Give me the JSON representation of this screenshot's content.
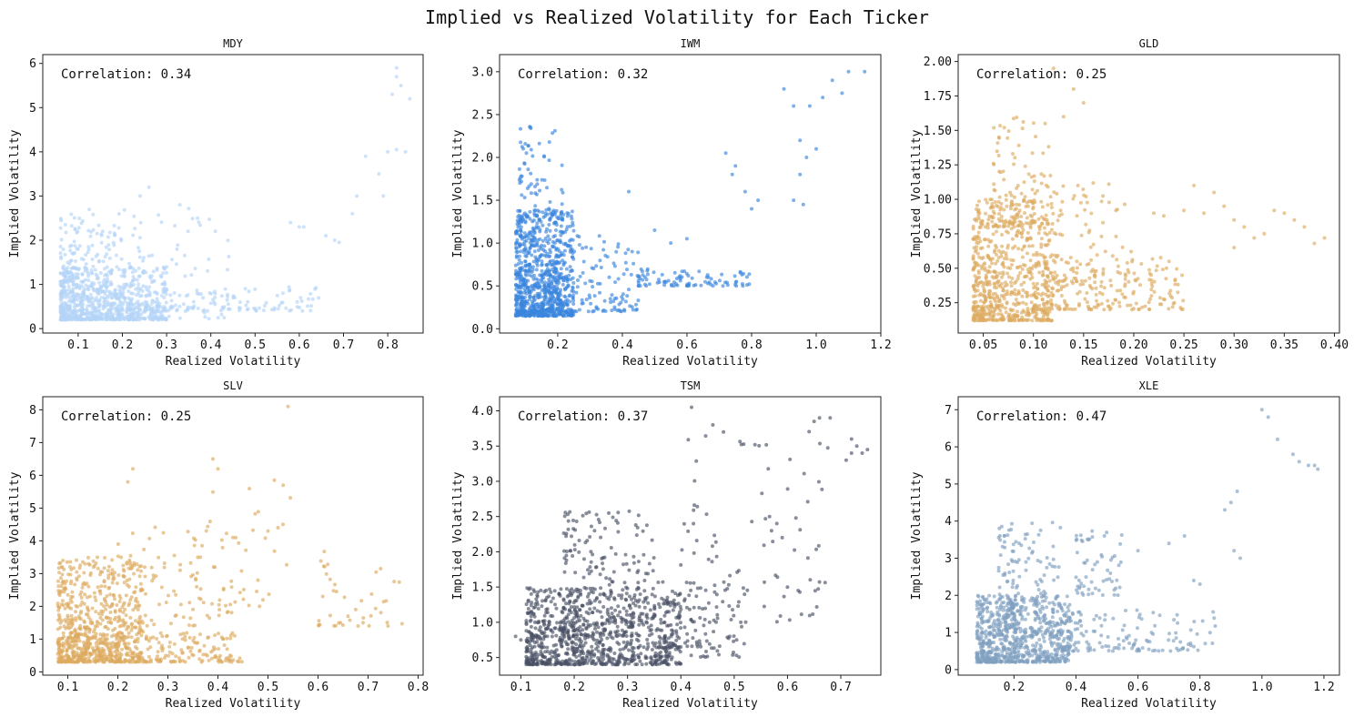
{
  "figure_title": "Implied vs Realized Volatility for Each Ticker",
  "chart_data": [
    {
      "type": "scatter",
      "title": "MDY",
      "xlabel": "Realized Volatility",
      "ylabel": "Implied Volatility",
      "annotation": "Correlation: 0.34",
      "color": "#b3d4f7",
      "xlim": [
        0.02,
        0.88
      ],
      "ylim": [
        -0.1,
        6.2
      ],
      "xticks": [
        {
          "v": 0.1,
          "label": "0.1"
        },
        {
          "v": 0.2,
          "label": "0.2"
        },
        {
          "v": 0.3,
          "label": "0.3"
        },
        {
          "v": 0.4,
          "label": "0.4"
        },
        {
          "v": 0.5,
          "label": "0.5"
        },
        {
          "v": 0.6,
          "label": "0.6"
        },
        {
          "v": 0.7,
          "label": "0.7"
        },
        {
          "v": 0.8,
          "label": "0.8"
        }
      ],
      "yticks": [
        {
          "v": 0,
          "label": "0"
        },
        {
          "v": 1,
          "label": "1"
        },
        {
          "v": 2,
          "label": "2"
        },
        {
          "v": 3,
          "label": "3"
        },
        {
          "v": 4,
          "label": "4"
        },
        {
          "v": 5,
          "label": "5"
        },
        {
          "v": 6,
          "label": "6"
        }
      ],
      "clusters": [
        {
          "cx": [
            0.06,
            0.3
          ],
          "cy": [
            0.2,
            1.4
          ],
          "n": 650
        },
        {
          "cx": [
            0.06,
            0.25
          ],
          "cy": [
            0.2,
            2.6
          ],
          "n": 250
        },
        {
          "cx": [
            0.1,
            0.45
          ],
          "cy": [
            0.2,
            2.8
          ],
          "n": 100
        },
        {
          "cx": [
            0.25,
            0.65
          ],
          "cy": [
            0.4,
            0.95
          ],
          "n": 130
        }
      ],
      "points": [
        [
          0.82,
          5.9
        ],
        [
          0.83,
          5.5
        ],
        [
          0.81,
          5.3
        ],
        [
          0.85,
          5.2
        ],
        [
          0.82,
          5.7
        ],
        [
          0.8,
          4.0
        ],
        [
          0.82,
          4.05
        ],
        [
          0.84,
          4.0
        ],
        [
          0.78,
          3.5
        ],
        [
          0.79,
          3.0
        ],
        [
          0.75,
          3.9
        ],
        [
          0.73,
          3.0
        ],
        [
          0.72,
          2.6
        ],
        [
          0.68,
          2.0
        ],
        [
          0.66,
          2.1
        ],
        [
          0.69,
          1.95
        ],
        [
          0.6,
          2.3
        ],
        [
          0.58,
          2.4
        ],
        [
          0.61,
          2.3
        ],
        [
          0.26,
          3.2
        ],
        [
          0.24,
          3.0
        ],
        [
          0.33,
          2.8
        ],
        [
          0.37,
          2.5
        ],
        [
          0.41,
          2.2
        ]
      ]
    },
    {
      "type": "scatter",
      "title": "IWM",
      "xlabel": "Realized Volatility",
      "ylabel": "Implied Volatility",
      "annotation": "Correlation: 0.32",
      "color": "#3a86dd",
      "xlim": [
        0.02,
        1.2
      ],
      "ylim": [
        -0.05,
        3.2
      ],
      "xticks": [
        {
          "v": 0.2,
          "label": "0.2"
        },
        {
          "v": 0.4,
          "label": "0.4"
        },
        {
          "v": 0.6,
          "label": "0.6"
        },
        {
          "v": 0.8,
          "label": "0.8"
        },
        {
          "v": 1.0,
          "label": "1.0"
        },
        {
          "v": 1.2,
          "label": "1.2"
        }
      ],
      "yticks": [
        {
          "v": 0,
          "label": "0.0"
        },
        {
          "v": 0.5,
          "label": "0.5"
        },
        {
          "v": 1.0,
          "label": "1.0"
        },
        {
          "v": 1.5,
          "label": "1.5"
        },
        {
          "v": 2.0,
          "label": "2.0"
        },
        {
          "v": 2.5,
          "label": "2.5"
        },
        {
          "v": 3.0,
          "label": "3.0"
        }
      ],
      "clusters": [
        {
          "cx": [
            0.07,
            0.25
          ],
          "cy": [
            0.15,
            1.4
          ],
          "n": 700
        },
        {
          "cx": [
            0.08,
            0.22
          ],
          "cy": [
            0.2,
            2.4
          ],
          "n": 200
        },
        {
          "cx": [
            0.15,
            0.45
          ],
          "cy": [
            0.2,
            1.1
          ],
          "n": 180
        },
        {
          "cx": [
            0.45,
            0.8
          ],
          "cy": [
            0.5,
            0.7
          ],
          "n": 90
        }
      ],
      "points": [
        [
          1.1,
          3.0
        ],
        [
          1.05,
          2.9
        ],
        [
          1.15,
          3.0
        ],
        [
          1.08,
          2.75
        ],
        [
          1.02,
          2.7
        ],
        [
          0.98,
          2.6
        ],
        [
          0.93,
          2.6
        ],
        [
          0.9,
          2.8
        ],
        [
          0.95,
          2.2
        ],
        [
          0.97,
          2.0
        ],
        [
          1.0,
          2.1
        ],
        [
          0.95,
          1.8
        ],
        [
          0.93,
          1.5
        ],
        [
          0.96,
          1.45
        ],
        [
          0.8,
          1.4
        ],
        [
          0.82,
          1.5
        ],
        [
          0.75,
          1.9
        ],
        [
          0.78,
          1.6
        ],
        [
          0.72,
          2.05
        ],
        [
          0.74,
          1.8
        ],
        [
          0.5,
          1.15
        ],
        [
          0.55,
          1.0
        ],
        [
          0.6,
          1.05
        ],
        [
          0.42,
          1.6
        ]
      ]
    },
    {
      "type": "scatter",
      "title": "GLD",
      "xlabel": "Realized Volatility",
      "ylabel": "Implied Volatility",
      "annotation": "Correlation: 0.25",
      "color": "#ddaa60",
      "xlim": [
        0.025,
        0.405
      ],
      "ylim": [
        0.03,
        2.05
      ],
      "xticks": [
        {
          "v": 0.05,
          "label": "0.05"
        },
        {
          "v": 0.1,
          "label": "0.10"
        },
        {
          "v": 0.15,
          "label": "0.15"
        },
        {
          "v": 0.2,
          "label": "0.20"
        },
        {
          "v": 0.25,
          "label": "0.25"
        },
        {
          "v": 0.3,
          "label": "0.30"
        },
        {
          "v": 0.35,
          "label": "0.35"
        },
        {
          "v": 0.4,
          "label": "0.40"
        }
      ],
      "yticks": [
        {
          "v": 0.25,
          "label": "0.25"
        },
        {
          "v": 0.5,
          "label": "0.50"
        },
        {
          "v": 0.75,
          "label": "0.75"
        },
        {
          "v": 1.0,
          "label": "1.00"
        },
        {
          "v": 1.25,
          "label": "1.25"
        },
        {
          "v": 1.5,
          "label": "1.50"
        },
        {
          "v": 1.75,
          "label": "1.75"
        },
        {
          "v": 2.0,
          "label": "2.00"
        }
      ],
      "clusters": [
        {
          "cx": [
            0.04,
            0.12
          ],
          "cy": [
            0.12,
            1.0
          ],
          "n": 650
        },
        {
          "cx": [
            0.06,
            0.12
          ],
          "cy": [
            0.8,
            1.6
          ],
          "n": 120
        },
        {
          "cx": [
            0.1,
            0.25
          ],
          "cy": [
            0.2,
            0.6
          ],
          "n": 220
        },
        {
          "cx": [
            0.12,
            0.2
          ],
          "cy": [
            0.4,
            1.2
          ],
          "n": 80
        }
      ],
      "points": [
        [
          0.39,
          0.72
        ],
        [
          0.38,
          0.68
        ],
        [
          0.37,
          0.8
        ],
        [
          0.36,
          0.85
        ],
        [
          0.35,
          0.9
        ],
        [
          0.34,
          0.92
        ],
        [
          0.32,
          0.72
        ],
        [
          0.33,
          0.75
        ],
        [
          0.31,
          0.8
        ],
        [
          0.3,
          0.85
        ],
        [
          0.29,
          0.95
        ],
        [
          0.28,
          1.05
        ],
        [
          0.27,
          0.9
        ],
        [
          0.25,
          0.92
        ],
        [
          0.23,
          0.88
        ],
        [
          0.22,
          0.9
        ],
        [
          0.26,
          1.1
        ],
        [
          0.3,
          0.65
        ],
        [
          0.14,
          1.8
        ],
        [
          0.12,
          1.95
        ],
        [
          0.15,
          1.7
        ],
        [
          0.13,
          1.6
        ]
      ]
    },
    {
      "type": "scatter",
      "title": "SLV",
      "xlabel": "Realized Volatility",
      "ylabel": "Implied Volatility",
      "annotation": "Correlation: 0.25",
      "color": "#ddaa60",
      "xlim": [
        0.05,
        0.81
      ],
      "ylim": [
        -0.1,
        8.4
      ],
      "xticks": [
        {
          "v": 0.1,
          "label": "0.1"
        },
        {
          "v": 0.2,
          "label": "0.2"
        },
        {
          "v": 0.3,
          "label": "0.3"
        },
        {
          "v": 0.4,
          "label": "0.4"
        },
        {
          "v": 0.5,
          "label": "0.5"
        },
        {
          "v": 0.6,
          "label": "0.6"
        },
        {
          "v": 0.7,
          "label": "0.7"
        },
        {
          "v": 0.8,
          "label": "0.8"
        }
      ],
      "yticks": [
        {
          "v": 0,
          "label": "0"
        },
        {
          "v": 1,
          "label": "1"
        },
        {
          "v": 2,
          "label": "2"
        },
        {
          "v": 3,
          "label": "3"
        },
        {
          "v": 4,
          "label": "4"
        },
        {
          "v": 5,
          "label": "5"
        },
        {
          "v": 6,
          "label": "6"
        },
        {
          "v": 7,
          "label": "7"
        },
        {
          "v": 8,
          "label": "8"
        }
      ],
      "clusters": [
        {
          "cx": [
            0.08,
            0.25
          ],
          "cy": [
            0.3,
            3.5
          ],
          "n": 650
        },
        {
          "cx": [
            0.1,
            0.45
          ],
          "cy": [
            0.3,
            1.2
          ],
          "n": 250
        },
        {
          "cx": [
            0.2,
            0.45
          ],
          "cy": [
            1.0,
            4.5
          ],
          "n": 100
        },
        {
          "cx": [
            0.35,
            0.55
          ],
          "cy": [
            2.0,
            6.0
          ],
          "n": 40
        },
        {
          "cx": [
            0.6,
            0.77
          ],
          "cy": [
            1.4,
            3.7
          ],
          "n": 40
        }
      ],
      "points": [
        [
          0.54,
          8.1
        ],
        [
          0.52,
          4.4
        ],
        [
          0.5,
          4.3
        ],
        [
          0.53,
          4.5
        ],
        [
          0.48,
          2.8
        ],
        [
          0.49,
          2.2
        ],
        [
          0.23,
          6.2
        ],
        [
          0.22,
          5.8
        ],
        [
          0.39,
          6.5
        ],
        [
          0.4,
          6.2
        ],
        [
          0.68,
          1.4
        ],
        [
          0.69,
          1.5
        ],
        [
          0.66,
          1.7
        ]
      ]
    },
    {
      "type": "scatter",
      "title": "TSM",
      "xlabel": "Realized Volatility",
      "ylabel": "Implied Volatility",
      "annotation": "Correlation: 0.37",
      "color": "#4a5165",
      "xlim": [
        0.06,
        0.775
      ],
      "ylim": [
        0.25,
        4.2
      ],
      "xticks": [
        {
          "v": 0.1,
          "label": "0.1"
        },
        {
          "v": 0.2,
          "label": "0.2"
        },
        {
          "v": 0.3,
          "label": "0.3"
        },
        {
          "v": 0.4,
          "label": "0.4"
        },
        {
          "v": 0.5,
          "label": "0.5"
        },
        {
          "v": 0.6,
          "label": "0.6"
        },
        {
          "v": 0.7,
          "label": "0.7"
        }
      ],
      "yticks": [
        {
          "v": 0.5,
          "label": "0.5"
        },
        {
          "v": 1.0,
          "label": "1.0"
        },
        {
          "v": 1.5,
          "label": "1.5"
        },
        {
          "v": 2.0,
          "label": "2.0"
        },
        {
          "v": 2.5,
          "label": "2.5"
        },
        {
          "v": 3.0,
          "label": "3.0"
        },
        {
          "v": 3.5,
          "label": "3.5"
        },
        {
          "v": 4.0,
          "label": "4.0"
        }
      ],
      "clusters": [
        {
          "cx": [
            0.11,
            0.4
          ],
          "cy": [
            0.4,
            1.5
          ],
          "n": 800
        },
        {
          "cx": [
            0.18,
            0.35
          ],
          "cy": [
            0.8,
            2.6
          ],
          "n": 250
        },
        {
          "cx": [
            0.35,
            0.52
          ],
          "cy": [
            0.5,
            1.6
          ],
          "n": 130
        },
        {
          "cx": [
            0.4,
            0.68
          ],
          "cy": [
            1.0,
            3.8
          ],
          "n": 90
        }
      ],
      "points": [
        [
          0.72,
          3.4
        ],
        [
          0.73,
          3.5
        ],
        [
          0.71,
          3.3
        ],
        [
          0.74,
          3.4
        ],
        [
          0.72,
          3.6
        ],
        [
          0.75,
          3.45
        ],
        [
          0.66,
          3.9
        ],
        [
          0.68,
          3.9
        ],
        [
          0.65,
          3.85
        ],
        [
          0.42,
          4.05
        ],
        [
          0.48,
          3.7
        ],
        [
          0.46,
          3.8
        ],
        [
          0.58,
          2.4
        ],
        [
          0.57,
          2.3
        ],
        [
          0.59,
          2.2
        ],
        [
          0.6,
          1.5
        ],
        [
          0.62,
          1.45
        ],
        [
          0.09,
          0.8
        ],
        [
          0.1,
          0.75
        ]
      ]
    },
    {
      "type": "scatter",
      "title": "XLE",
      "xlabel": "Realized Volatility",
      "ylabel": "Implied Volatility",
      "annotation": "Correlation: 0.47",
      "color": "#80a0c0",
      "xlim": [
        0.02,
        1.25
      ],
      "ylim": [
        -0.15,
        7.35
      ],
      "xticks": [
        {
          "v": 0.2,
          "label": "0.2"
        },
        {
          "v": 0.4,
          "label": "0.4"
        },
        {
          "v": 0.6,
          "label": "0.6"
        },
        {
          "v": 0.8,
          "label": "0.8"
        },
        {
          "v": 1.0,
          "label": "1.0"
        },
        {
          "v": 1.2,
          "label": "1.2"
        }
      ],
      "yticks": [
        {
          "v": 0,
          "label": "0"
        },
        {
          "v": 1,
          "label": "1"
        },
        {
          "v": 2,
          "label": "2"
        },
        {
          "v": 3,
          "label": "3"
        },
        {
          "v": 4,
          "label": "4"
        },
        {
          "v": 5,
          "label": "5"
        },
        {
          "v": 6,
          "label": "6"
        },
        {
          "v": 7,
          "label": "7"
        }
      ],
      "clusters": [
        {
          "cx": [
            0.08,
            0.38
          ],
          "cy": [
            0.2,
            2.0
          ],
          "n": 700
        },
        {
          "cx": [
            0.15,
            0.35
          ],
          "cy": [
            1.0,
            4.0
          ],
          "n": 180
        },
        {
          "cx": [
            0.35,
            0.85
          ],
          "cy": [
            0.5,
            1.6
          ],
          "n": 150
        },
        {
          "cx": [
            0.4,
            0.55
          ],
          "cy": [
            2.0,
            3.8
          ],
          "n": 60
        }
      ],
      "points": [
        [
          1.0,
          7.0
        ],
        [
          1.02,
          6.8
        ],
        [
          1.05,
          6.2
        ],
        [
          1.1,
          5.8
        ],
        [
          1.12,
          5.6
        ],
        [
          1.15,
          5.5
        ],
        [
          1.18,
          5.4
        ],
        [
          1.17,
          5.5
        ],
        [
          0.92,
          4.8
        ],
        [
          0.9,
          4.5
        ],
        [
          0.88,
          4.3
        ],
        [
          0.93,
          3.0
        ],
        [
          0.91,
          3.2
        ],
        [
          0.78,
          2.4
        ],
        [
          0.8,
          2.3
        ],
        [
          0.75,
          3.6
        ],
        [
          0.7,
          3.4
        ],
        [
          0.6,
          3.2
        ]
      ]
    }
  ]
}
